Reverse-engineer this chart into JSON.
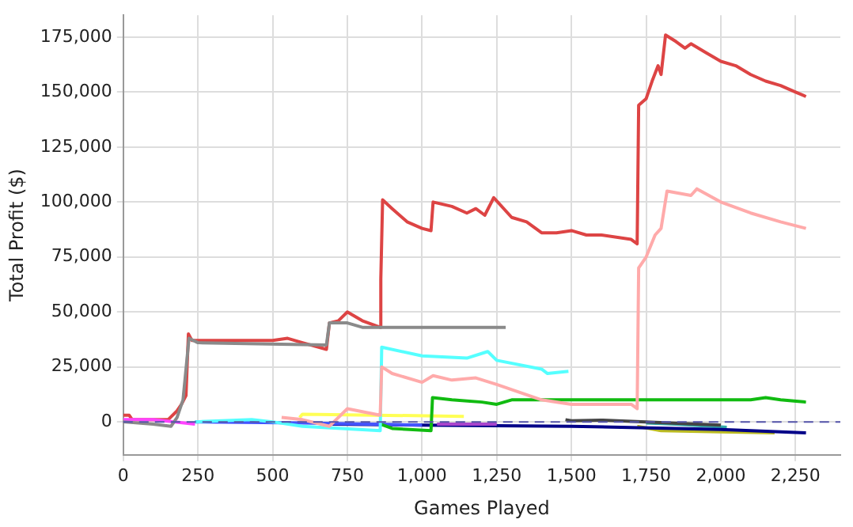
{
  "chart_data": {
    "type": "line",
    "xlabel": "Games Played",
    "ylabel": "Total Profit ($)",
    "xlim": [
      0,
      2400
    ],
    "ylim": [
      -15000,
      185000
    ],
    "xticks": [
      0,
      250,
      500,
      750,
      {
        "value": 1000,
        "label": "1,000"
      },
      {
        "value": 1250,
        "label": "1,250"
      },
      {
        "value": 1500,
        "label": "1,500"
      },
      {
        "value": 1750,
        "label": "1,750"
      },
      {
        "value": 2000,
        "label": "2,000"
      },
      {
        "value": 2250,
        "label": "2,250"
      }
    ],
    "yticks": [
      0,
      {
        "value": 25000,
        "label": "25,000"
      },
      {
        "value": 50000,
        "label": "50,000"
      },
      {
        "value": 75000,
        "label": "75,000"
      },
      {
        "value": 100000,
        "label": "100,000"
      },
      {
        "value": 125000,
        "label": "125,000"
      },
      {
        "value": 150000,
        "label": "150,000"
      },
      {
        "value": 175000,
        "label": "175,000"
      }
    ],
    "grid": true,
    "legend": false,
    "marker": "none",
    "line_style": "solid",
    "ref_lines": [
      {
        "axis": "y",
        "value": 0,
        "color": "#5555aa",
        "line_style": "dashed"
      }
    ],
    "series": [
      {
        "color": "#8a8a8a",
        "x": [
          0,
          100,
          160,
          180,
          200,
          220,
          250,
          680,
          690,
          750,
          800,
          860,
          1280
        ],
        "values": [
          0,
          -1000,
          -2000,
          2000,
          10000,
          38000,
          36000,
          35000,
          45000,
          45000,
          43000,
          43000,
          43000
        ]
      },
      {
        "color": "#ffaaaa",
        "x": [
          530,
          600,
          690,
          750,
          860,
          865,
          900,
          1000,
          1037,
          1100,
          1180,
          1250,
          1400,
          1500,
          1700,
          1720,
          1725,
          1750,
          1780,
          1800,
          1820,
          1900,
          1920,
          2000,
          2100,
          2200,
          2285
        ],
        "values": [
          2000,
          1000,
          -2000,
          6000,
          3000,
          25000,
          22000,
          18000,
          21000,
          19000,
          20000,
          17000,
          10000,
          8000,
          8000,
          6000,
          70000,
          75000,
          85000,
          88000,
          105000,
          103000,
          106000,
          100000,
          95000,
          91000,
          88000
        ]
      },
      {
        "color": "#55ffff",
        "x": [
          240,
          430,
          500,
          600,
          860,
          865,
          1000,
          1150,
          1220,
          1250,
          1400,
          1420,
          1490
        ],
        "values": [
          0,
          1000,
          0,
          -2000,
          -4000,
          34000,
          30000,
          29000,
          32000,
          28000,
          24000,
          22000,
          23000
        ]
      },
      {
        "color": "#11bb11",
        "x": [
          860,
          900,
          1030,
          1035,
          1100,
          1200,
          1250,
          1300,
          1700,
          2100,
          2150,
          2200,
          2285
        ],
        "values": [
          -1000,
          -3000,
          -4000,
          11000,
          10000,
          9000,
          8000,
          10000,
          10000,
          10000,
          11000,
          10000,
          9000
        ]
      },
      {
        "color": "#ffff55",
        "x": [
          590,
          600,
          1140
        ],
        "values": [
          2000,
          3500,
          2500
        ]
      },
      {
        "color": "#ff44ff",
        "x": [
          0,
          100,
          240
        ],
        "values": [
          1000,
          1000,
          -1000
        ]
      },
      {
        "color": "#aa44cc",
        "x": [
          1050,
          1250
        ],
        "values": [
          -1000,
          -1000
        ]
      },
      {
        "color": "#4455ff",
        "x": [
          240,
          600,
          1000
        ],
        "values": [
          0,
          -500,
          -1500
        ]
      },
      {
        "color": "#000088",
        "x": [
          700,
          1000,
          1500,
          2000,
          2285
        ],
        "values": [
          -1000,
          -1500,
          -2000,
          -3500,
          -5000
        ]
      },
      {
        "color": "#444444",
        "x": [
          1480,
          1500,
          1600,
          1750,
          2000
        ],
        "values": [
          1000,
          500,
          800,
          0,
          -1500
        ]
      },
      {
        "color": "#bbbb22",
        "x": [
          1720,
          1800,
          2000,
          2180
        ],
        "values": [
          -2000,
          -4000,
          -4500,
          -5000
        ]
      },
      {
        "color": "#33aaaa",
        "x": [
          1750,
          1850,
          2020
        ],
        "values": [
          -500,
          -1000,
          -2500
        ]
      },
      {
        "color": "#dd4444",
        "x": [
          0,
          20,
          30,
          150,
          180,
          195,
          210,
          218,
          230,
          500,
          550,
          600,
          680,
          690,
          720,
          750,
          800,
          860,
          862,
          868,
          900,
          950,
          1000,
          1030,
          1037,
          1100,
          1150,
          1180,
          1210,
          1240,
          1300,
          1350,
          1400,
          1450,
          1500,
          1550,
          1600,
          1700,
          1720,
          1725,
          1750,
          1770,
          1790,
          1800,
          1815,
          1850,
          1880,
          1900,
          1950,
          2000,
          2050,
          2100,
          2150,
          2200,
          2250,
          2285
        ],
        "values": [
          3000,
          3000,
          1000,
          1000,
          5000,
          8000,
          12000,
          40000,
          37000,
          37000,
          38000,
          36000,
          33000,
          45000,
          46000,
          50000,
          46000,
          43000,
          65000,
          101000,
          97000,
          91000,
          88000,
          87000,
          100000,
          98000,
          95000,
          97000,
          94000,
          102000,
          93000,
          91000,
          86000,
          86000,
          87000,
          85000,
          85000,
          83000,
          81000,
          144000,
          147000,
          155000,
          162000,
          158000,
          176000,
          173000,
          170000,
          172000,
          168000,
          164000,
          162000,
          158000,
          155000,
          153000,
          150000,
          148000
        ]
      }
    ]
  }
}
